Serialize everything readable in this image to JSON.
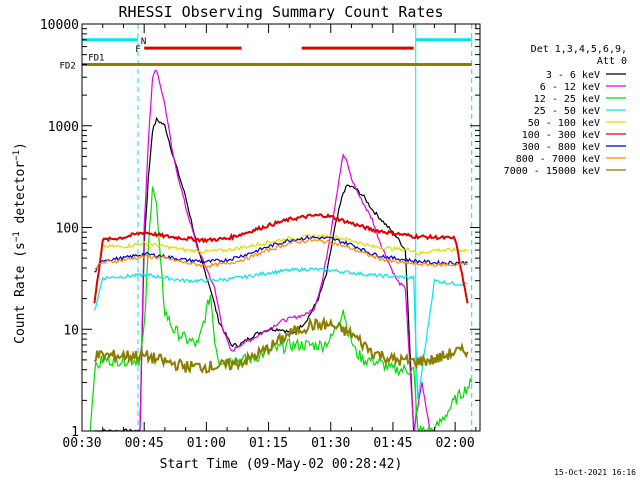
{
  "chart_data": {
    "type": "line",
    "title": "RHESSI Observing Summary Count Rates",
    "xlabel": "Start Time (09-May-02 00:28:42)",
    "ylabel": "Count Rate (s^-1 detector^-1)",
    "ylabel_parts": {
      "pre": "Count Rate (s",
      "sup1": "−1",
      "mid": " detector",
      "sup2": "−1",
      "post": ")"
    },
    "x_unit": "minutes after 00:30 UT",
    "xlim": [
      0,
      96
    ],
    "ylim": [
      1,
      10000
    ],
    "yscale": "log",
    "x_ticks": [
      {
        "x": 0,
        "label": "00:30"
      },
      {
        "x": 15,
        "label": "00:45"
      },
      {
        "x": 30,
        "label": "01:00"
      },
      {
        "x": 45,
        "label": "01:15"
      },
      {
        "x": 60,
        "label": "01:30"
      },
      {
        "x": 75,
        "label": "01:45"
      },
      {
        "x": 90,
        "label": "02:00"
      }
    ],
    "y_ticks": [
      {
        "y": 1,
        "label": "1"
      },
      {
        "y": 10,
        "label": "10"
      },
      {
        "y": 100,
        "label": "100"
      },
      {
        "y": 1000,
        "label": "1000"
      },
      {
        "y": 10000,
        "label": "10000"
      }
    ],
    "legend_header": [
      "Det 1,3,4,5,6,9,",
      "Att 0"
    ],
    "legend_position": "right",
    "timestamp": "15-Oct-2021 16:16",
    "flags": [
      {
        "label": "N",
        "color": "#00e5ee",
        "segments": [
          [
            0,
            13.5
          ],
          [
            80.5,
            94
          ]
        ],
        "y": 7000
      },
      {
        "label": "F",
        "color": "#e00000",
        "segments": [
          [
            15,
            38.5
          ],
          [
            53,
            80
          ]
        ],
        "y": 5800
      },
      {
        "label": "FD1",
        "color": "#8b7d00",
        "segments": [],
        "y": 4800
      },
      {
        "label": "FD2",
        "color": "#8b7d00",
        "segments": [
          [
            0,
            94
          ]
        ],
        "y": 4000
      }
    ],
    "vlines": [
      {
        "x": 0,
        "color": "#00e5ee",
        "style": "solid"
      },
      {
        "x": 13.5,
        "color": "#00e5ee",
        "style": "dashed"
      },
      {
        "x": 80.5,
        "color": "#00e5ee",
        "style": "solid"
      },
      {
        "x": 94,
        "color": "#00e5ee",
        "style": "dashed"
      }
    ],
    "series": [
      {
        "name": "3 - 6 keV",
        "color": "#000000",
        "x": [
          3,
          14,
          15,
          16,
          17,
          18,
          20,
          22,
          25,
          28,
          31,
          33,
          36,
          38,
          40,
          42,
          45,
          48,
          51,
          54,
          55,
          57,
          59,
          61,
          63,
          64,
          66,
          68,
          70,
          73,
          76,
          78,
          80
        ],
        "y": [
          1,
          1,
          70,
          300,
          900,
          1150,
          1000,
          500,
          200,
          60,
          25,
          12,
          7,
          7,
          8,
          9,
          10,
          10,
          9,
          12,
          14,
          20,
          35,
          100,
          220,
          260,
          240,
          200,
          150,
          110,
          80,
          60,
          1
        ]
      },
      {
        "name": "6 - 12 keV",
        "color": "#e000e0",
        "x": [
          14,
          15,
          16,
          17,
          18,
          20,
          22,
          25,
          28,
          30,
          32,
          34,
          36,
          38,
          41,
          45,
          48,
          51,
          54,
          56,
          58,
          60,
          62,
          63,
          64,
          65,
          67,
          70,
          72,
          74,
          76,
          78,
          80,
          82,
          84
        ],
        "y": [
          1,
          100,
          700,
          3000,
          3600,
          1600,
          500,
          160,
          60,
          40,
          25,
          10,
          6,
          7,
          8,
          10,
          12,
          13,
          14,
          16,
          30,
          90,
          300,
          520,
          430,
          300,
          200,
          120,
          70,
          45,
          30,
          25,
          1,
          3,
          1
        ]
      },
      {
        "name": "12 - 25 keV",
        "color": "#00dd00",
        "x": [
          2,
          3,
          5,
          7,
          9,
          11,
          13,
          14,
          15,
          16,
          17,
          18,
          19,
          20,
          22,
          25,
          28,
          30,
          31,
          32,
          33,
          35,
          40,
          45,
          50,
          55,
          58,
          60,
          62,
          63,
          64,
          66,
          68,
          70,
          75,
          80,
          81,
          85,
          90,
          94
        ],
        "y": [
          1,
          4,
          5,
          5,
          5,
          5,
          5,
          5,
          10,
          60,
          280,
          160,
          40,
          15,
          10,
          8,
          7,
          15,
          22,
          8,
          5,
          5,
          5,
          6,
          7,
          7,
          7,
          8,
          12,
          16,
          10,
          6,
          5,
          5,
          4,
          4,
          1,
          1,
          2,
          3
        ]
      },
      {
        "name": "25 - 50 keV",
        "color": "#00e5ee",
        "x": [
          3,
          5,
          10,
          14,
          16,
          20,
          25,
          30,
          35,
          40,
          45,
          50,
          55,
          60,
          65,
          70,
          75,
          80,
          81,
          85,
          90,
          93
        ],
        "y": [
          15,
          32,
          33,
          34,
          34,
          32,
          30,
          30,
          31,
          33,
          36,
          38,
          39,
          38,
          36,
          34,
          33,
          32,
          2,
          30,
          28,
          28
        ]
      },
      {
        "name": "50 - 100 keV",
        "color": "#dddd00",
        "x": [
          3,
          5,
          10,
          15,
          20,
          25,
          30,
          35,
          40,
          45,
          50,
          55,
          60,
          65,
          70,
          75,
          80,
          81,
          85,
          90,
          93
        ],
        "y": [
          20,
          65,
          65,
          70,
          65,
          60,
          58,
          60,
          65,
          72,
          78,
          82,
          82,
          75,
          65,
          62,
          60,
          55,
          60,
          60,
          60
        ]
      },
      {
        "name": "100 - 300 keV",
        "color": "#e00000",
        "x": [
          3,
          5,
          10,
          15,
          20,
          25,
          30,
          35,
          40,
          45,
          50,
          55,
          58,
          60,
          65,
          70,
          75,
          80,
          85,
          90,
          93
        ],
        "y": [
          18,
          75,
          80,
          90,
          82,
          78,
          75,
          78,
          90,
          105,
          120,
          130,
          132,
          128,
          110,
          95,
          88,
          82,
          80,
          78,
          18
        ]
      },
      {
        "name": "300 - 800 keV",
        "color": "#0000cc",
        "x": [
          3,
          5,
          10,
          15,
          20,
          25,
          30,
          35,
          40,
          45,
          50,
          55,
          60,
          65,
          70,
          75,
          80,
          85,
          90,
          93
        ],
        "y": [
          36,
          48,
          50,
          55,
          52,
          48,
          46,
          48,
          55,
          65,
          75,
          80,
          78,
          68,
          55,
          50,
          47,
          45,
          45,
          45
        ]
      },
      {
        "name": "800 - 7000 keV",
        "color": "#ff8800",
        "x": [
          3,
          5,
          10,
          15,
          20,
          25,
          30,
          35,
          40,
          45,
          50,
          55,
          60,
          65,
          70,
          75,
          80,
          85,
          90,
          93
        ],
        "y": [
          40,
          45,
          48,
          52,
          50,
          45,
          42,
          44,
          50,
          60,
          70,
          75,
          72,
          62,
          52,
          46,
          44,
          43,
          43,
          44
        ]
      },
      {
        "name": "7000 - 15000 keV",
        "color": "#8b7d00",
        "x": [
          3,
          5,
          10,
          15,
          20,
          25,
          30,
          35,
          40,
          45,
          50,
          55,
          60,
          65,
          70,
          75,
          80,
          85,
          90,
          93
        ],
        "y": [
          5.5,
          5.5,
          5.5,
          5.5,
          4.8,
          4.3,
          4.3,
          4.4,
          5,
          6.5,
          9,
          11,
          11,
          9,
          6,
          5,
          4.8,
          5,
          6,
          6
        ]
      }
    ]
  }
}
